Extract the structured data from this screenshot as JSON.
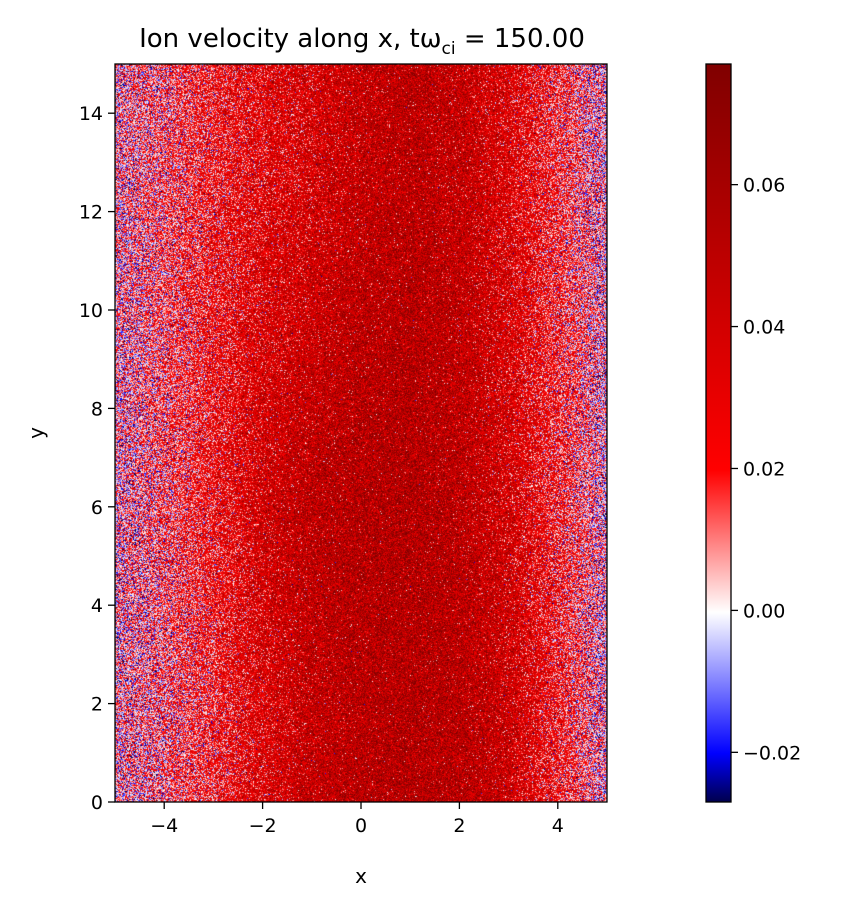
{
  "chart_data": {
    "type": "heatmap",
    "title": "Ion velocity along x, tω",
    "title_subscript": "ci",
    "title_suffix": " = 150.00",
    "xlabel": "x",
    "ylabel": "y",
    "xlim": [
      -5,
      5
    ],
    "ylim": [
      0,
      15
    ],
    "x_ticks": [
      -4,
      -2,
      0,
      2,
      4
    ],
    "x_tick_labels": [
      "−4",
      "−2",
      "0",
      "2",
      "4"
    ],
    "y_ticks": [
      0,
      2,
      4,
      6,
      8,
      10,
      12,
      14
    ],
    "y_tick_labels": [
      "0",
      "2",
      "4",
      "6",
      "8",
      "10",
      "12",
      "14"
    ],
    "colormap": "seismic",
    "colorbar": {
      "vmin": -0.027,
      "vmax": 0.077,
      "ticks": [
        -0.02,
        0.0,
        0.02,
        0.04,
        0.06
      ],
      "tick_labels": [
        "−0.02",
        "0.00",
        "0.02",
        "0.04",
        "0.06"
      ],
      "colors": [
        "#00004d",
        "#0000ff",
        "#ffffff",
        "#ff0000",
        "#800000"
      ]
    },
    "field_profile": {
      "description_values": "mean velocity as a function of x and y",
      "x_samples": [
        -5,
        -4,
        -3,
        -2,
        -1,
        0,
        1,
        2,
        3,
        4,
        5
      ],
      "mean_at_y_low": [
        0.003,
        0.01,
        0.02,
        0.034,
        0.046,
        0.052,
        0.054,
        0.052,
        0.042,
        0.022,
        0.002
      ],
      "mean_at_y_mid": [
        0.003,
        0.012,
        0.024,
        0.04,
        0.05,
        0.054,
        0.055,
        0.05,
        0.038,
        0.02,
        0.001
      ],
      "mean_at_y_high": [
        0.004,
        0.012,
        0.022,
        0.03,
        0.036,
        0.046,
        0.05,
        0.046,
        0.034,
        0.018,
        0.002
      ],
      "noise_std": 0.018
    }
  }
}
